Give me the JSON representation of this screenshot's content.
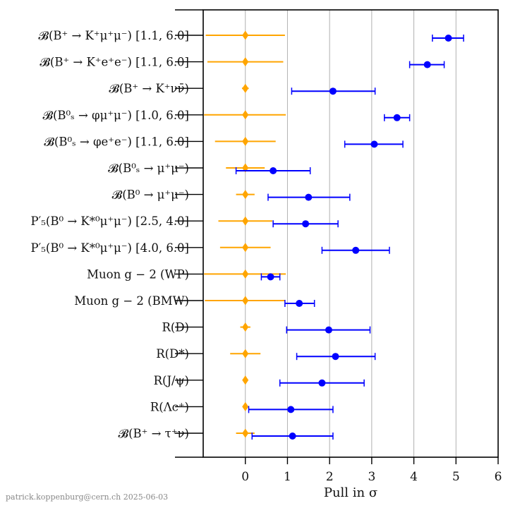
{
  "chart_data": {
    "type": "scatter",
    "xlabel": "Pull in σ",
    "xlim": [
      -1,
      6
    ],
    "x_ticks": [
      "0",
      "1",
      "2",
      "3",
      "4",
      "5",
      "6"
    ],
    "grid": "vertical at integer ticks",
    "legend": "none",
    "categories": [
      "𝓑(B⁺ → K⁺μ⁺μ⁻) [1.1, 6.0]",
      "𝓑(B⁺ → K⁺e⁺e⁻) [1.1, 6.0]",
      "𝓑(B⁺ → K⁺νν̄)",
      "𝓑(B⁰ₛ → φμ⁺μ⁻) [1.0, 6.0]",
      "𝓑(B⁰ₛ → φe⁺e⁻) [1.1, 6.0]",
      "𝓑(B⁰ₛ → μ⁺μ⁻)",
      "𝓑(B⁰ → μ⁺μ⁻)",
      "P′₅(B⁰ → K*⁰μ⁺μ⁻) [2.5, 4.0]",
      "P′₅(B⁰ → K*⁰μ⁺μ⁻) [4.0, 6.0]",
      "Muon g − 2 (WP)",
      "Muon g − 2 (BMW)",
      "R(D)",
      "R(D*)",
      "R(J/ψ)",
      "R(Λc⁺)",
      "𝓑(B⁺ → τ⁺ν)"
    ],
    "series": [
      {
        "marker": "circle",
        "color": "#0000ff",
        "values": [
          4.82,
          4.32,
          2.08,
          3.6,
          3.06,
          0.66,
          1.5,
          1.43,
          2.62,
          0.6,
          1.28,
          1.98,
          2.14,
          1.82,
          1.08,
          1.12
        ],
        "lower": [
          4.44,
          3.9,
          1.1,
          3.3,
          2.36,
          -0.22,
          0.54,
          0.66,
          1.82,
          0.38,
          0.94,
          0.98,
          1.22,
          0.82,
          0.08,
          0.16
        ],
        "upper": [
          5.18,
          4.72,
          3.08,
          3.9,
          3.74,
          1.54,
          2.48,
          2.2,
          3.42,
          0.82,
          1.64,
          2.96,
          3.08,
          2.82,
          2.08,
          2.08
        ]
      },
      {
        "marker": "diamond",
        "color": "#ffa500",
        "values": [
          0,
          0,
          0,
          0,
          0,
          0,
          0,
          0,
          0,
          0,
          0,
          0,
          0,
          0,
          0,
          0
        ],
        "lower": [
          -0.94,
          -0.9,
          -0.08,
          -0.98,
          -0.72,
          -0.46,
          -0.22,
          -0.64,
          -0.6,
          -0.98,
          -0.96,
          -0.12,
          -0.36,
          0,
          0,
          -0.22
        ],
        "upper": [
          0.94,
          0.9,
          0.08,
          0.96,
          0.72,
          0.46,
          0.22,
          0.64,
          0.6,
          0.96,
          0.94,
          0.12,
          0.36,
          0,
          0,
          0.22
        ]
      }
    ]
  },
  "footer": "patrick.koppenburg@cern.ch  2025-06-03"
}
